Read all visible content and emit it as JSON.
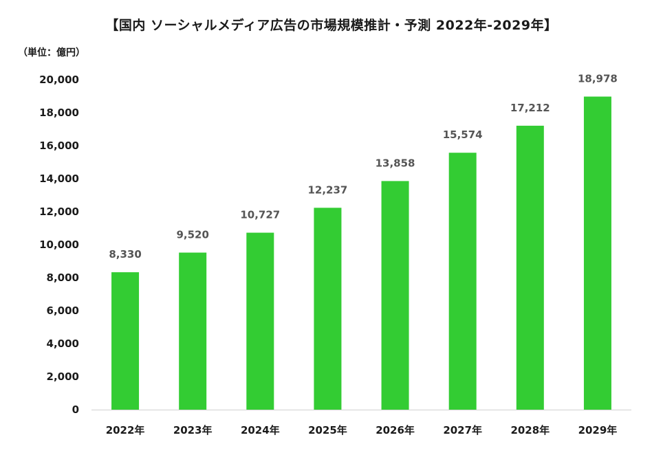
{
  "chart_data": {
    "type": "bar",
    "title": "【国内 ソーシャルメディア広告の市場規模推計・予測 2022年-2029年】",
    "unit_label": "（単位：億円）",
    "xlabel": "",
    "ylabel": "",
    "categories": [
      "2022年",
      "2023年",
      "2024年",
      "2025年",
      "2026年",
      "2027年",
      "2028年",
      "2029年"
    ],
    "values": [
      8330,
      9520,
      10727,
      12237,
      13858,
      15574,
      17212,
      18978
    ],
    "data_labels": [
      "8,330",
      "9,520",
      "10,727",
      "12,237",
      "13,858",
      "15,574",
      "17,212",
      "18,978"
    ],
    "ylim": [
      0,
      20000
    ],
    "yticks": [
      0,
      2000,
      4000,
      6000,
      8000,
      10000,
      12000,
      14000,
      16000,
      18000,
      20000
    ],
    "ytick_labels": [
      "0",
      "2,000",
      "4,000",
      "6,000",
      "8,000",
      "10,000",
      "12,000",
      "14,000",
      "16,000",
      "18,000",
      "20,000"
    ],
    "grid": false,
    "legend": "none",
    "bar_color": "#33cc33"
  }
}
